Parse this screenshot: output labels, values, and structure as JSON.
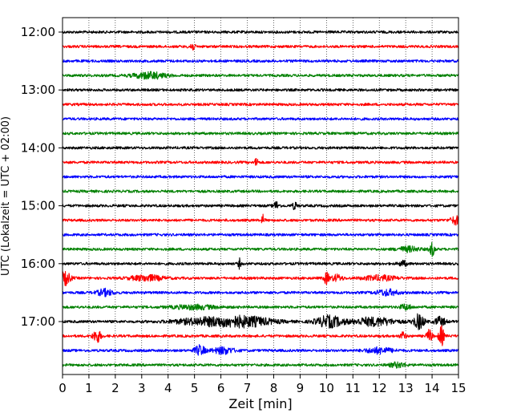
{
  "chart_data": {
    "type": "line",
    "title": "",
    "xlabel": "Zeit  [min]",
    "ylabel": "UTC (Lokalzeit = UTC + 02:00)",
    "xlim": [
      0,
      15
    ],
    "x_ticks": [
      0,
      1,
      2,
      3,
      4,
      5,
      6,
      7,
      8,
      9,
      10,
      11,
      12,
      13,
      14,
      15
    ],
    "y_ticks": [
      "12:00",
      "13:00",
      "14:00",
      "15:00",
      "16:00",
      "17:00"
    ],
    "grid": "vertical dotted",
    "trace_interval_minutes": 15,
    "trace_colors": [
      "#000000",
      "#ff0000",
      "#0000ff",
      "#008000"
    ],
    "series": [
      {
        "start": "12:00",
        "color": "#000000",
        "events": []
      },
      {
        "start": "12:15",
        "color": "#ff0000",
        "events": [
          {
            "t": 4.9,
            "amp": 0.5,
            "dur": 0.1
          }
        ]
      },
      {
        "start": "12:30",
        "color": "#0000ff",
        "events": []
      },
      {
        "start": "12:45",
        "color": "#008000",
        "events": [
          {
            "t": 3.3,
            "amp": 0.4,
            "dur": 0.6
          }
        ]
      },
      {
        "start": "13:00",
        "color": "#000000",
        "events": []
      },
      {
        "start": "13:15",
        "color": "#ff0000",
        "events": []
      },
      {
        "start": "13:30",
        "color": "#0000ff",
        "events": []
      },
      {
        "start": "13:45",
        "color": "#008000",
        "events": []
      },
      {
        "start": "14:00",
        "color": "#000000",
        "events": []
      },
      {
        "start": "14:15",
        "color": "#ff0000",
        "events": [
          {
            "t": 7.35,
            "amp": 0.8,
            "dur": 0.05
          }
        ]
      },
      {
        "start": "14:30",
        "color": "#0000ff",
        "events": []
      },
      {
        "start": "14:45",
        "color": "#008000",
        "events": []
      },
      {
        "start": "15:00",
        "color": "#000000",
        "events": [
          {
            "t": 8.1,
            "amp": 0.5,
            "dur": 0.1
          },
          {
            "t": 8.8,
            "amp": 0.4,
            "dur": 0.1
          }
        ]
      },
      {
        "start": "15:15",
        "color": "#ff0000",
        "events": [
          {
            "t": 7.6,
            "amp": 0.7,
            "dur": 0.05
          },
          {
            "t": 14.9,
            "amp": 0.5,
            "dur": 0.2
          }
        ]
      },
      {
        "start": "15:30",
        "color": "#0000ff",
        "events": []
      },
      {
        "start": "15:45",
        "color": "#008000",
        "events": [
          {
            "t": 13.1,
            "amp": 0.3,
            "dur": 0.4
          },
          {
            "t": 14.0,
            "amp": 0.8,
            "dur": 0.1
          }
        ]
      },
      {
        "start": "16:00",
        "color": "#000000",
        "events": [
          {
            "t": 6.7,
            "amp": 0.6,
            "dur": 0.05
          },
          {
            "t": 12.9,
            "amp": 0.35,
            "dur": 0.15
          }
        ]
      },
      {
        "start": "16:15",
        "color": "#ff0000",
        "events": [
          {
            "t": 0.1,
            "amp": 0.8,
            "dur": 0.2
          },
          {
            "t": 3.2,
            "amp": 0.35,
            "dur": 0.6
          },
          {
            "t": 10.0,
            "amp": 0.7,
            "dur": 0.1
          },
          {
            "t": 10.4,
            "amp": 0.4,
            "dur": 0.2
          },
          {
            "t": 12.0,
            "amp": 0.3,
            "dur": 0.6
          }
        ]
      },
      {
        "start": "16:30",
        "color": "#0000ff",
        "events": [
          {
            "t": 1.6,
            "amp": 0.4,
            "dur": 0.3
          },
          {
            "t": 12.3,
            "amp": 0.35,
            "dur": 0.4
          }
        ]
      },
      {
        "start": "16:45",
        "color": "#008000",
        "events": [
          {
            "t": 5.0,
            "amp": 0.25,
            "dur": 0.8
          },
          {
            "t": 13.0,
            "amp": 0.35,
            "dur": 0.2
          }
        ]
      },
      {
        "start": "17:00",
        "color": "#000000",
        "events": [
          {
            "t": 5.5,
            "amp": 0.45,
            "dur": 1.2
          },
          {
            "t": 7.0,
            "amp": 0.55,
            "dur": 1.0
          },
          {
            "t": 10.1,
            "amp": 0.7,
            "dur": 0.5
          },
          {
            "t": 11.8,
            "amp": 0.5,
            "dur": 0.8
          },
          {
            "t": 13.5,
            "amp": 0.9,
            "dur": 0.2
          },
          {
            "t": 14.3,
            "amp": 0.55,
            "dur": 0.2
          }
        ]
      },
      {
        "start": "17:15",
        "color": "#ff0000",
        "events": [
          {
            "t": 1.3,
            "amp": 0.8,
            "dur": 0.15
          },
          {
            "t": 12.9,
            "amp": 0.5,
            "dur": 0.1
          },
          {
            "t": 13.9,
            "amp": 0.8,
            "dur": 0.1
          },
          {
            "t": 14.35,
            "amp": 1.2,
            "dur": 0.1
          }
        ]
      },
      {
        "start": "17:30",
        "color": "#0000ff",
        "events": [
          {
            "t": 5.2,
            "amp": 0.6,
            "dur": 0.2
          },
          {
            "t": 6.1,
            "amp": 0.4,
            "dur": 0.4
          },
          {
            "t": 12.0,
            "amp": 0.35,
            "dur": 0.5
          }
        ]
      },
      {
        "start": "17:45",
        "color": "#008000",
        "events": [
          {
            "t": 12.7,
            "amp": 0.3,
            "dur": 0.3
          }
        ]
      }
    ]
  }
}
